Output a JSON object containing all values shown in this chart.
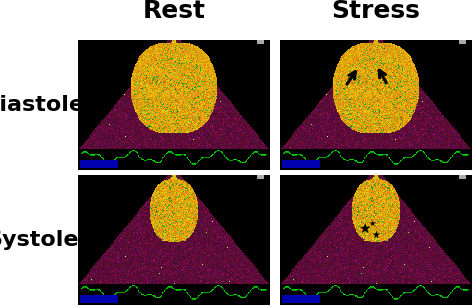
{
  "title_rest": "Rest",
  "title_stress": "Stress",
  "row_label_top": "Diastole",
  "row_label_bottom": "Systole",
  "bg_color": "#ffffff",
  "title_fontsize": 18,
  "row_label_fontsize": 16,
  "title_fontweight": "bold",
  "row_label_fontweight": "bold",
  "philips_color": "#0000cc",
  "ecg_color": "#00cc00"
}
